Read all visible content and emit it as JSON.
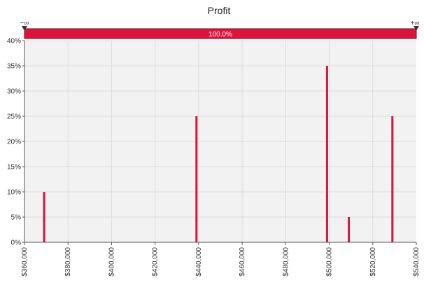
{
  "colors": {
    "bar": "#dc143c",
    "plot_bg": "#f2f2f2",
    "grid": "#dcdcdc",
    "axis": "#555555",
    "slider_bar": "#dc143c",
    "slider_text": "#ffffff"
  },
  "slider": {
    "left_label": "−∞",
    "right_label": "+∞",
    "percent_label": "100.0%"
  },
  "chart_data": {
    "type": "bar",
    "title": "Profit",
    "xlabel": "",
    "ylabel": "",
    "xlim": [
      360000,
      540000
    ],
    "ylim": [
      0,
      40
    ],
    "grid": true,
    "x_ticks": [
      360000,
      380000,
      400000,
      420000,
      440000,
      460000,
      480000,
      500000,
      520000,
      540000
    ],
    "x_tick_labels": [
      "$360,000",
      "$380,000",
      "$400,000",
      "$420,000",
      "$440,000",
      "$460,000",
      "$480,000",
      "$500,000",
      "$520,000",
      "$540,000"
    ],
    "y_ticks": [
      0,
      5,
      10,
      15,
      20,
      25,
      30,
      35,
      40
    ],
    "y_tick_labels": [
      "0%",
      "5%",
      "10%",
      "15%",
      "20%",
      "25%",
      "30%",
      "35%",
      "40%"
    ],
    "series": [
      {
        "points": [
          {
            "x": 369000,
            "y": 10
          },
          {
            "x": 439000,
            "y": 25
          },
          {
            "x": 499000,
            "y": 35
          },
          {
            "x": 509000,
            "y": 5
          },
          {
            "x": 529000,
            "y": 25
          }
        ]
      }
    ]
  }
}
